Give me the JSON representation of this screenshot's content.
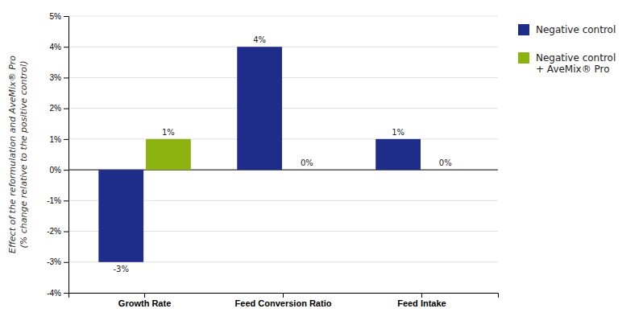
{
  "chart_data": {
    "type": "bar",
    "categories": [
      "Growth Rate",
      "Feed Conversion Ratio",
      "Feed Intake"
    ],
    "series": [
      {
        "name": "Negative control",
        "color": "#1F2D8A",
        "values": [
          -3,
          4,
          1
        ],
        "value_labels": [
          "-3%",
          "4%",
          "1%"
        ]
      },
      {
        "name": "Negative control\n+ AveMix® Pro",
        "color": "#8DB310",
        "values": [
          1,
          0,
          0
        ],
        "value_labels": [
          "1%",
          "0%",
          "0%"
        ]
      }
    ],
    "y_label": "Effect of the reformulation and AveMix® Pro\n(% change relative to the positive control)",
    "ylim": [
      -4,
      5
    ],
    "yticks": [
      {
        "value": -4,
        "label": "-4%"
      },
      {
        "value": -3,
        "label": "-3%"
      },
      {
        "value": -2,
        "label": "-2%"
      },
      {
        "value": -1,
        "label": "-1%"
      },
      {
        "value": 0,
        "label": "0%"
      },
      {
        "value": 1,
        "label": "1%"
      },
      {
        "value": 2,
        "label": "2%"
      },
      {
        "value": 3,
        "label": "3%"
      },
      {
        "value": 4,
        "label": "4%"
      },
      {
        "value": 5,
        "label": "5%"
      }
    ],
    "grid": true,
    "legend": "right",
    "data_labels": true
  }
}
